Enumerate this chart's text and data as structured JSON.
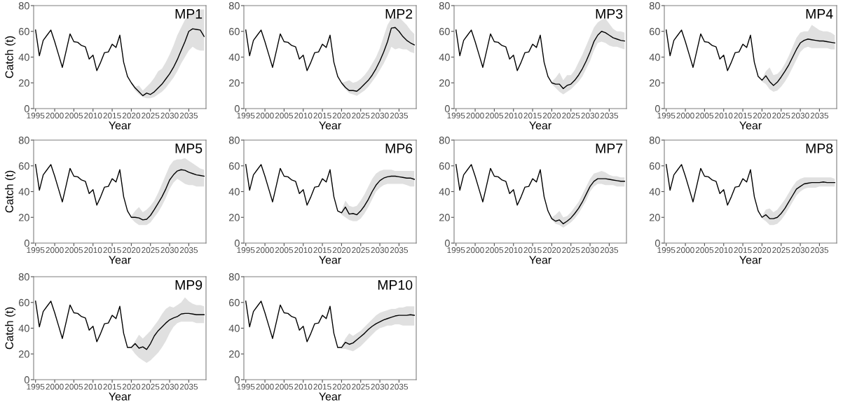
{
  "chart_data": [
    {
      "type": "line",
      "title": "MP1",
      "xlabel": "Year",
      "ylabel": "Catch (t)",
      "xlim": [
        1994.5,
        2039.5
      ],
      "ylim": [
        0,
        80
      ],
      "xticks": [
        1995,
        2000,
        2005,
        2010,
        2015,
        2020,
        2025,
        2030,
        2035
      ],
      "yticks": [
        0,
        20,
        40,
        60,
        80
      ],
      "grid": false,
      "x": [
        1995,
        1996,
        1997,
        1998,
        1999,
        2000,
        2001,
        2002,
        2003,
        2004,
        2005,
        2006,
        2007,
        2008,
        2009,
        2010,
        2011,
        2012,
        2013,
        2014,
        2015,
        2016,
        2017,
        2018,
        2019,
        2020,
        2021,
        2022,
        2023,
        2024,
        2025,
        2026,
        2027,
        2028,
        2029,
        2030,
        2031,
        2032,
        2033,
        2034,
        2035,
        2036,
        2037,
        2038,
        2039
      ],
      "series": [
        {
          "color": "#000000",
          "values": [
            61,
            41,
            53,
            57,
            61,
            52,
            42,
            32,
            45,
            58,
            52,
            51.5,
            49,
            48,
            38.5,
            41.5,
            29.5,
            36,
            43.5,
            44,
            50,
            47.5,
            57,
            36,
            25,
            20,
            16,
            13,
            10,
            12,
            11,
            13,
            16,
            19,
            23,
            27,
            32,
            38,
            45,
            52,
            60,
            62,
            61.5,
            61,
            56
          ],
          "lower": [
            null,
            null,
            null,
            null,
            null,
            null,
            null,
            null,
            null,
            null,
            null,
            null,
            null,
            null,
            null,
            null,
            null,
            null,
            null,
            null,
            null,
            null,
            null,
            null,
            null,
            19,
            14,
            11,
            9,
            8,
            8,
            9,
            11,
            13,
            16,
            20,
            24,
            29,
            35,
            40,
            45,
            48,
            46,
            45,
            45
          ],
          "upper": [
            null,
            null,
            null,
            null,
            null,
            null,
            null,
            null,
            null,
            null,
            null,
            null,
            null,
            null,
            null,
            null,
            null,
            null,
            null,
            null,
            null,
            null,
            null,
            null,
            null,
            21,
            17,
            18,
            14,
            17,
            20,
            24,
            29,
            31,
            36,
            42,
            49,
            57,
            63,
            69,
            72,
            74,
            76,
            77,
            77
          ]
        }
      ]
    },
    {
      "type": "line",
      "title": "MP2",
      "xlabel": "Year",
      "xlim": [
        1994.5,
        2039.5
      ],
      "ylim": [
        0,
        80
      ],
      "xticks": [
        1995,
        2000,
        2005,
        2010,
        2015,
        2020,
        2025,
        2030,
        2035
      ],
      "yticks": [
        0,
        20,
        40,
        60,
        80
      ],
      "grid": false,
      "x": [
        1995,
        1996,
        1997,
        1998,
        1999,
        2000,
        2001,
        2002,
        2003,
        2004,
        2005,
        2006,
        2007,
        2008,
        2009,
        2010,
        2011,
        2012,
        2013,
        2014,
        2015,
        2016,
        2017,
        2018,
        2019,
        2020,
        2021,
        2022,
        2023,
        2024,
        2025,
        2026,
        2027,
        2028,
        2029,
        2030,
        2031,
        2032,
        2033,
        2034,
        2035,
        2036,
        2037,
        2038,
        2039
      ],
      "series": [
        {
          "color": "#000000",
          "values": [
            61,
            41,
            53,
            57,
            61,
            52,
            42,
            32,
            45,
            58,
            52,
            51.5,
            49,
            48,
            38.5,
            41.5,
            29.5,
            36,
            43.5,
            44,
            50,
            47.5,
            57,
            36,
            25,
            20,
            16.5,
            14,
            14,
            13.5,
            16,
            19,
            22,
            26,
            31,
            37,
            44,
            52,
            62.5,
            63,
            60,
            56,
            53,
            51,
            49.5
          ],
          "lower": [
            null,
            null,
            null,
            null,
            null,
            null,
            null,
            null,
            null,
            null,
            null,
            null,
            null,
            null,
            null,
            null,
            null,
            null,
            null,
            null,
            null,
            null,
            null,
            null,
            null,
            19,
            15,
            12,
            11,
            10,
            12,
            14,
            17,
            21,
            25,
            30,
            35,
            41,
            48,
            46,
            47,
            46,
            46,
            44,
            43
          ],
          "upper": [
            null,
            null,
            null,
            null,
            null,
            null,
            null,
            null,
            null,
            null,
            null,
            null,
            null,
            null,
            null,
            null,
            null,
            null,
            null,
            null,
            null,
            null,
            null,
            null,
            null,
            20,
            21,
            22,
            20,
            21,
            23,
            26,
            30,
            35,
            40,
            47,
            56,
            65,
            70,
            71,
            71,
            68,
            65,
            61,
            58
          ]
        }
      ]
    },
    {
      "type": "line",
      "title": "MP3",
      "xlabel": "Year",
      "xlim": [
        1994.5,
        2039.5
      ],
      "ylim": [
        0,
        80
      ],
      "xticks": [
        1995,
        2000,
        2005,
        2010,
        2015,
        2020,
        2025,
        2030,
        2035
      ],
      "yticks": [
        0,
        20,
        40,
        60,
        80
      ],
      "grid": false,
      "x": [
        1995,
        1996,
        1997,
        1998,
        1999,
        2000,
        2001,
        2002,
        2003,
        2004,
        2005,
        2006,
        2007,
        2008,
        2009,
        2010,
        2011,
        2012,
        2013,
        2014,
        2015,
        2016,
        2017,
        2018,
        2019,
        2020,
        2021,
        2022,
        2023,
        2024,
        2025,
        2026,
        2027,
        2028,
        2029,
        2030,
        2031,
        2032,
        2033,
        2034,
        2035,
        2036,
        2037,
        2038,
        2039
      ],
      "series": [
        {
          "color": "#000000",
          "values": [
            61,
            41,
            53,
            57,
            61,
            52,
            42,
            32,
            45,
            58,
            52,
            51.5,
            49,
            48,
            38.5,
            41.5,
            29.5,
            36,
            43.5,
            44,
            50,
            47.5,
            57,
            36,
            25,
            20,
            19,
            19,
            15.5,
            18,
            19,
            22,
            26,
            31,
            37,
            44,
            52,
            57,
            60,
            59,
            57,
            55,
            54,
            53,
            52.5
          ],
          "lower": [
            null,
            null,
            null,
            null,
            null,
            null,
            null,
            null,
            null,
            null,
            null,
            null,
            null,
            null,
            null,
            null,
            null,
            null,
            null,
            null,
            null,
            null,
            null,
            null,
            null,
            19,
            16,
            13,
            11,
            13,
            15,
            18,
            21,
            25,
            31,
            37,
            45,
            51,
            52,
            51,
            49,
            48,
            48,
            47,
            46
          ],
          "upper": [
            null,
            null,
            null,
            null,
            null,
            null,
            null,
            null,
            null,
            null,
            null,
            null,
            null,
            null,
            null,
            null,
            null,
            null,
            null,
            null,
            null,
            null,
            null,
            null,
            null,
            21,
            24,
            28,
            22,
            26,
            26,
            30,
            36,
            42,
            49,
            56,
            63,
            67,
            69,
            70,
            66,
            62,
            60,
            60,
            59
          ]
        }
      ]
    },
    {
      "type": "line",
      "title": "MP4",
      "xlabel": "Year",
      "xlim": [
        1994.5,
        2039.5
      ],
      "ylim": [
        0,
        80
      ],
      "xticks": [
        1995,
        2000,
        2005,
        2010,
        2015,
        2020,
        2025,
        2030,
        2035
      ],
      "yticks": [
        0,
        20,
        40,
        60,
        80
      ],
      "grid": false,
      "x": [
        1995,
        1996,
        1997,
        1998,
        1999,
        2000,
        2001,
        2002,
        2003,
        2004,
        2005,
        2006,
        2007,
        2008,
        2009,
        2010,
        2011,
        2012,
        2013,
        2014,
        2015,
        2016,
        2017,
        2018,
        2019,
        2020,
        2021,
        2022,
        2023,
        2024,
        2025,
        2026,
        2027,
        2028,
        2029,
        2030,
        2031,
        2032,
        2033,
        2034,
        2035,
        2036,
        2037,
        2038,
        2039
      ],
      "series": [
        {
          "color": "#000000",
          "values": [
            61,
            41,
            53,
            57,
            61,
            52,
            42,
            32,
            45,
            58,
            52,
            51.5,
            49,
            48,
            38.5,
            41.5,
            29.5,
            36,
            43.5,
            44,
            50,
            47.5,
            57,
            36,
            25,
            22,
            25.5,
            21,
            18,
            20.5,
            24.5,
            29,
            34,
            40,
            46,
            51,
            53,
            54,
            53.5,
            53,
            52.5,
            52.5,
            52,
            51.5,
            51
          ],
          "lower": [
            null,
            null,
            null,
            null,
            null,
            null,
            null,
            null,
            null,
            null,
            null,
            null,
            null,
            null,
            null,
            null,
            null,
            null,
            null,
            null,
            null,
            null,
            null,
            null,
            null,
            21,
            19,
            15,
            13,
            14,
            17,
            21,
            26,
            32,
            38,
            44,
            47,
            48,
            47,
            47,
            47,
            47,
            47,
            46,
            46
          ],
          "upper": [
            null,
            null,
            null,
            null,
            null,
            null,
            null,
            null,
            null,
            null,
            null,
            null,
            null,
            null,
            null,
            null,
            null,
            null,
            null,
            null,
            null,
            null,
            null,
            null,
            null,
            23,
            29,
            32,
            26,
            27,
            30,
            35,
            41,
            48,
            55,
            59,
            60,
            60,
            65,
            63,
            61,
            60,
            60,
            59,
            57
          ]
        }
      ]
    },
    {
      "type": "line",
      "title": "MP5",
      "xlabel": "Year",
      "ylabel": "Catch (t)",
      "xlim": [
        1994.5,
        2039.5
      ],
      "ylim": [
        0,
        80
      ],
      "xticks": [
        1995,
        2000,
        2005,
        2010,
        2015,
        2020,
        2025,
        2030,
        2035
      ],
      "yticks": [
        0,
        20,
        40,
        60,
        80
      ],
      "grid": false,
      "x": [
        1995,
        1996,
        1997,
        1998,
        1999,
        2000,
        2001,
        2002,
        2003,
        2004,
        2005,
        2006,
        2007,
        2008,
        2009,
        2010,
        2011,
        2012,
        2013,
        2014,
        2015,
        2016,
        2017,
        2018,
        2019,
        2020,
        2021,
        2022,
        2023,
        2024,
        2025,
        2026,
        2027,
        2028,
        2029,
        2030,
        2031,
        2032,
        2033,
        2034,
        2035,
        2036,
        2037,
        2038,
        2039
      ],
      "series": [
        {
          "color": "#000000",
          "values": [
            61,
            41,
            53,
            57,
            61,
            52,
            42,
            32,
            45,
            58,
            52,
            51.5,
            49,
            48,
            38.5,
            41.5,
            29.5,
            36,
            43.5,
            44,
            50,
            47.5,
            57,
            36,
            25,
            20,
            20,
            19.5,
            18,
            18.5,
            21.5,
            26,
            31,
            36,
            42,
            49,
            53,
            56,
            57,
            56.5,
            55,
            54,
            53,
            52.5,
            52
          ],
          "lower": [
            null,
            null,
            null,
            null,
            null,
            null,
            null,
            null,
            null,
            null,
            null,
            null,
            null,
            null,
            null,
            null,
            null,
            null,
            null,
            null,
            null,
            null,
            null,
            null,
            null,
            19,
            16,
            14,
            14,
            14,
            16,
            20,
            24,
            29,
            35,
            42,
            47,
            50,
            48,
            46,
            45,
            45,
            44,
            44,
            44
          ],
          "upper": [
            null,
            null,
            null,
            null,
            null,
            null,
            null,
            null,
            null,
            null,
            null,
            null,
            null,
            null,
            null,
            null,
            null,
            null,
            null,
            null,
            null,
            null,
            null,
            null,
            null,
            21,
            25,
            28,
            24,
            26,
            29,
            33,
            39,
            46,
            53,
            60,
            64,
            65,
            65,
            66,
            64,
            62,
            60,
            58,
            57
          ]
        }
      ]
    },
    {
      "type": "line",
      "title": "MP6",
      "xlabel": "Year",
      "xlim": [
        1994.5,
        2039.5
      ],
      "ylim": [
        0,
        80
      ],
      "xticks": [
        1995,
        2000,
        2005,
        2010,
        2015,
        2020,
        2025,
        2030,
        2035
      ],
      "yticks": [
        0,
        20,
        40,
        60,
        80
      ],
      "grid": false,
      "x": [
        1995,
        1996,
        1997,
        1998,
        1999,
        2000,
        2001,
        2002,
        2003,
        2004,
        2005,
        2006,
        2007,
        2008,
        2009,
        2010,
        2011,
        2012,
        2013,
        2014,
        2015,
        2016,
        2017,
        2018,
        2019,
        2020,
        2021,
        2022,
        2023,
        2024,
        2025,
        2026,
        2027,
        2028,
        2029,
        2030,
        2031,
        2032,
        2033,
        2034,
        2035,
        2036,
        2037,
        2038,
        2039
      ],
      "series": [
        {
          "color": "#000000",
          "values": [
            61,
            41,
            53,
            57,
            61,
            52,
            42,
            32,
            45,
            58,
            52,
            51.5,
            49,
            48,
            38.5,
            41.5,
            29.5,
            36,
            43.5,
            44,
            50,
            47.5,
            57,
            36,
            25,
            23.5,
            28,
            22.5,
            23,
            22,
            25,
            29,
            34,
            40,
            45,
            48.5,
            50.5,
            51.5,
            52,
            52,
            51.5,
            51,
            50.5,
            50.5,
            49.5
          ],
          "lower": [
            null,
            null,
            null,
            null,
            null,
            null,
            null,
            null,
            null,
            null,
            null,
            null,
            null,
            null,
            null,
            null,
            null,
            null,
            null,
            null,
            null,
            null,
            null,
            null,
            null,
            22,
            20,
            18,
            17,
            17,
            19,
            23,
            28,
            34,
            40,
            43,
            45,
            46,
            46,
            46,
            46,
            46,
            45,
            44,
            44
          ],
          "upper": [
            null,
            null,
            null,
            null,
            null,
            null,
            null,
            null,
            null,
            null,
            null,
            null,
            null,
            null,
            null,
            null,
            null,
            null,
            null,
            null,
            null,
            null,
            null,
            null,
            null,
            25,
            33,
            29,
            28,
            29,
            33,
            38,
            44,
            50,
            54,
            56,
            57,
            57,
            57,
            56,
            56,
            56,
            56,
            56,
            56
          ]
        }
      ]
    },
    {
      "type": "line",
      "title": "MP7",
      "xlabel": "Year",
      "xlim": [
        1994.5,
        2039.5
      ],
      "ylim": [
        0,
        80
      ],
      "xticks": [
        1995,
        2000,
        2005,
        2010,
        2015,
        2020,
        2025,
        2030,
        2035
      ],
      "yticks": [
        0,
        20,
        40,
        60,
        80
      ],
      "grid": false,
      "x": [
        1995,
        1996,
        1997,
        1998,
        1999,
        2000,
        2001,
        2002,
        2003,
        2004,
        2005,
        2006,
        2007,
        2008,
        2009,
        2010,
        2011,
        2012,
        2013,
        2014,
        2015,
        2016,
        2017,
        2018,
        2019,
        2020,
        2021,
        2022,
        2023,
        2024,
        2025,
        2026,
        2027,
        2028,
        2029,
        2030,
        2031,
        2032,
        2033,
        2034,
        2035,
        2036,
        2037,
        2038,
        2039
      ],
      "series": [
        {
          "color": "#000000",
          "values": [
            61,
            41,
            53,
            57,
            61,
            52,
            42,
            32,
            45,
            58,
            52,
            51.5,
            49,
            48,
            38.5,
            41.5,
            29.5,
            36,
            43.5,
            44,
            50,
            47.5,
            57,
            36,
            25,
            19,
            17,
            18,
            15,
            17,
            19.5,
            23,
            27,
            32,
            38,
            44,
            48,
            50,
            50,
            50,
            49.5,
            49,
            48.5,
            48,
            48
          ],
          "lower": [
            null,
            null,
            null,
            null,
            null,
            null,
            null,
            null,
            null,
            null,
            null,
            null,
            null,
            null,
            null,
            null,
            null,
            null,
            null,
            null,
            null,
            null,
            null,
            null,
            null,
            18,
            15,
            14,
            12,
            14,
            16,
            19,
            23,
            28,
            33,
            40,
            44,
            46,
            46,
            45,
            45,
            45,
            44,
            44,
            44
          ],
          "upper": [
            null,
            null,
            null,
            null,
            null,
            null,
            null,
            null,
            null,
            null,
            null,
            null,
            null,
            null,
            null,
            null,
            null,
            null,
            null,
            null,
            null,
            null,
            null,
            null,
            null,
            20,
            22,
            25,
            20,
            21,
            24,
            28,
            32,
            38,
            44,
            50,
            54,
            55,
            56,
            55,
            53,
            52,
            52,
            51,
            51
          ]
        }
      ]
    },
    {
      "type": "line",
      "title": "MP8",
      "xlabel": "Year",
      "xlim": [
        1994.5,
        2039.5
      ],
      "ylim": [
        0,
        80
      ],
      "xticks": [
        1995,
        2000,
        2005,
        2010,
        2015,
        2020,
        2025,
        2030,
        2035
      ],
      "yticks": [
        0,
        20,
        40,
        60,
        80
      ],
      "grid": false,
      "x": [
        1995,
        1996,
        1997,
        1998,
        1999,
        2000,
        2001,
        2002,
        2003,
        2004,
        2005,
        2006,
        2007,
        2008,
        2009,
        2010,
        2011,
        2012,
        2013,
        2014,
        2015,
        2016,
        2017,
        2018,
        2019,
        2020,
        2021,
        2022,
        2023,
        2024,
        2025,
        2026,
        2027,
        2028,
        2029,
        2030,
        2031,
        2032,
        2033,
        2034,
        2035,
        2036,
        2037,
        2038,
        2039
      ],
      "series": [
        {
          "color": "#000000",
          "values": [
            61,
            41,
            53,
            57,
            61,
            52,
            42,
            32,
            45,
            58,
            52,
            51.5,
            49,
            48,
            38.5,
            41.5,
            29.5,
            36,
            43.5,
            44,
            50,
            47.5,
            57,
            36,
            25,
            20,
            22,
            19,
            19,
            20,
            23,
            27,
            32,
            37,
            42,
            44,
            46,
            46.5,
            47,
            47,
            47,
            47.5,
            47,
            47,
            47
          ],
          "lower": [
            null,
            null,
            null,
            null,
            null,
            null,
            null,
            null,
            null,
            null,
            null,
            null,
            null,
            null,
            null,
            null,
            null,
            null,
            null,
            null,
            null,
            null,
            null,
            null,
            null,
            19,
            17,
            14,
            14,
            15,
            18,
            22,
            27,
            32,
            37,
            40,
            42,
            43,
            43,
            43,
            44,
            44,
            44,
            44,
            44
          ],
          "upper": [
            null,
            null,
            null,
            null,
            null,
            null,
            null,
            null,
            null,
            null,
            null,
            null,
            null,
            null,
            null,
            null,
            null,
            null,
            null,
            null,
            null,
            null,
            null,
            null,
            null,
            21,
            26,
            27,
            24,
            26,
            30,
            34,
            39,
            44,
            48,
            50,
            51,
            51,
            51,
            51,
            51,
            51,
            51,
            51,
            50
          ]
        }
      ]
    },
    {
      "type": "line",
      "title": "MP9",
      "xlabel": "Year",
      "ylabel": "Catch (t)",
      "xlim": [
        1994.5,
        2039.5
      ],
      "ylim": [
        0,
        80
      ],
      "xticks": [
        1995,
        2000,
        2005,
        2010,
        2015,
        2020,
        2025,
        2030,
        2035
      ],
      "yticks": [
        0,
        20,
        40,
        60,
        80
      ],
      "grid": false,
      "x": [
        1995,
        1996,
        1997,
        1998,
        1999,
        2000,
        2001,
        2002,
        2003,
        2004,
        2005,
        2006,
        2007,
        2008,
        2009,
        2010,
        2011,
        2012,
        2013,
        2014,
        2015,
        2016,
        2017,
        2018,
        2019,
        2020,
        2021,
        2022,
        2023,
        2024,
        2025,
        2026,
        2027,
        2028,
        2029,
        2030,
        2031,
        2032,
        2033,
        2034,
        2035,
        2036,
        2037,
        2038,
        2039
      ],
      "series": [
        {
          "color": "#000000",
          "values": [
            61,
            41,
            53,
            57,
            61,
            52,
            42,
            32,
            45,
            58,
            52,
            51.5,
            49,
            48,
            38.5,
            41.5,
            29.5,
            36,
            43.5,
            44,
            50,
            47.5,
            57,
            36,
            25,
            25,
            28,
            24.5,
            25.5,
            23.5,
            28,
            34,
            38,
            41,
            44,
            46.5,
            48,
            49,
            51,
            51.5,
            51.5,
            51,
            50.5,
            50.5,
            50.5
          ],
          "lower": [
            null,
            null,
            null,
            null,
            null,
            null,
            null,
            null,
            null,
            null,
            null,
            null,
            null,
            null,
            null,
            null,
            null,
            null,
            null,
            null,
            null,
            null,
            null,
            null,
            null,
            24,
            20,
            17,
            15,
            13,
            15,
            18,
            21,
            25,
            30,
            36,
            41,
            44,
            45,
            45,
            45,
            45,
            44,
            44,
            44
          ],
          "upper": [
            null,
            null,
            null,
            null,
            null,
            null,
            null,
            null,
            null,
            null,
            null,
            null,
            null,
            null,
            null,
            null,
            null,
            null,
            null,
            null,
            null,
            null,
            null,
            null,
            null,
            26,
            30,
            35,
            32,
            35,
            38,
            42,
            46,
            51,
            55,
            57,
            56,
            58,
            60,
            64,
            61,
            59,
            58,
            58,
            57
          ]
        }
      ]
    },
    {
      "type": "line",
      "title": "MP10",
      "xlabel": "Year",
      "xlim": [
        1994.5,
        2039.5
      ],
      "ylim": [
        0,
        80
      ],
      "xticks": [
        1995,
        2000,
        2005,
        2010,
        2015,
        2020,
        2025,
        2030,
        2035
      ],
      "yticks": [
        0,
        20,
        40,
        60,
        80
      ],
      "grid": false,
      "x": [
        1995,
        1996,
        1997,
        1998,
        1999,
        2000,
        2001,
        2002,
        2003,
        2004,
        2005,
        2006,
        2007,
        2008,
        2009,
        2010,
        2011,
        2012,
        2013,
        2014,
        2015,
        2016,
        2017,
        2018,
        2019,
        2020,
        2021,
        2022,
        2023,
        2024,
        2025,
        2026,
        2027,
        2028,
        2029,
        2030,
        2031,
        2032,
        2033,
        2034,
        2035,
        2036,
        2037,
        2038,
        2039
      ],
      "series": [
        {
          "color": "#000000",
          "values": [
            61,
            41,
            53,
            57,
            61,
            52,
            42,
            32,
            45,
            58,
            52,
            51.5,
            49,
            48,
            38.5,
            41.5,
            29.5,
            36,
            43.5,
            44,
            50,
            47.5,
            57,
            36,
            25,
            25,
            29,
            27.5,
            28.5,
            31,
            33.5,
            36,
            39,
            41.5,
            43.5,
            45,
            46.5,
            47.5,
            48.5,
            49.5,
            50,
            50,
            50,
            50.5,
            50
          ],
          "lower": [
            null,
            null,
            null,
            null,
            null,
            null,
            null,
            null,
            null,
            null,
            null,
            null,
            null,
            null,
            null,
            null,
            null,
            null,
            null,
            null,
            null,
            null,
            null,
            null,
            null,
            24,
            24,
            23,
            22,
            24,
            26,
            29,
            32,
            35,
            38,
            40,
            41,
            42,
            42,
            43,
            43,
            42,
            42,
            42,
            42
          ],
          "upper": [
            null,
            null,
            null,
            null,
            null,
            null,
            null,
            null,
            null,
            null,
            null,
            null,
            null,
            null,
            null,
            null,
            null,
            null,
            null,
            null,
            null,
            null,
            null,
            null,
            null,
            26,
            32,
            36,
            34,
            36,
            38,
            41,
            44,
            47,
            50,
            52,
            53,
            54,
            55,
            55,
            56,
            56,
            57,
            57,
            57
          ]
        }
      ]
    }
  ]
}
